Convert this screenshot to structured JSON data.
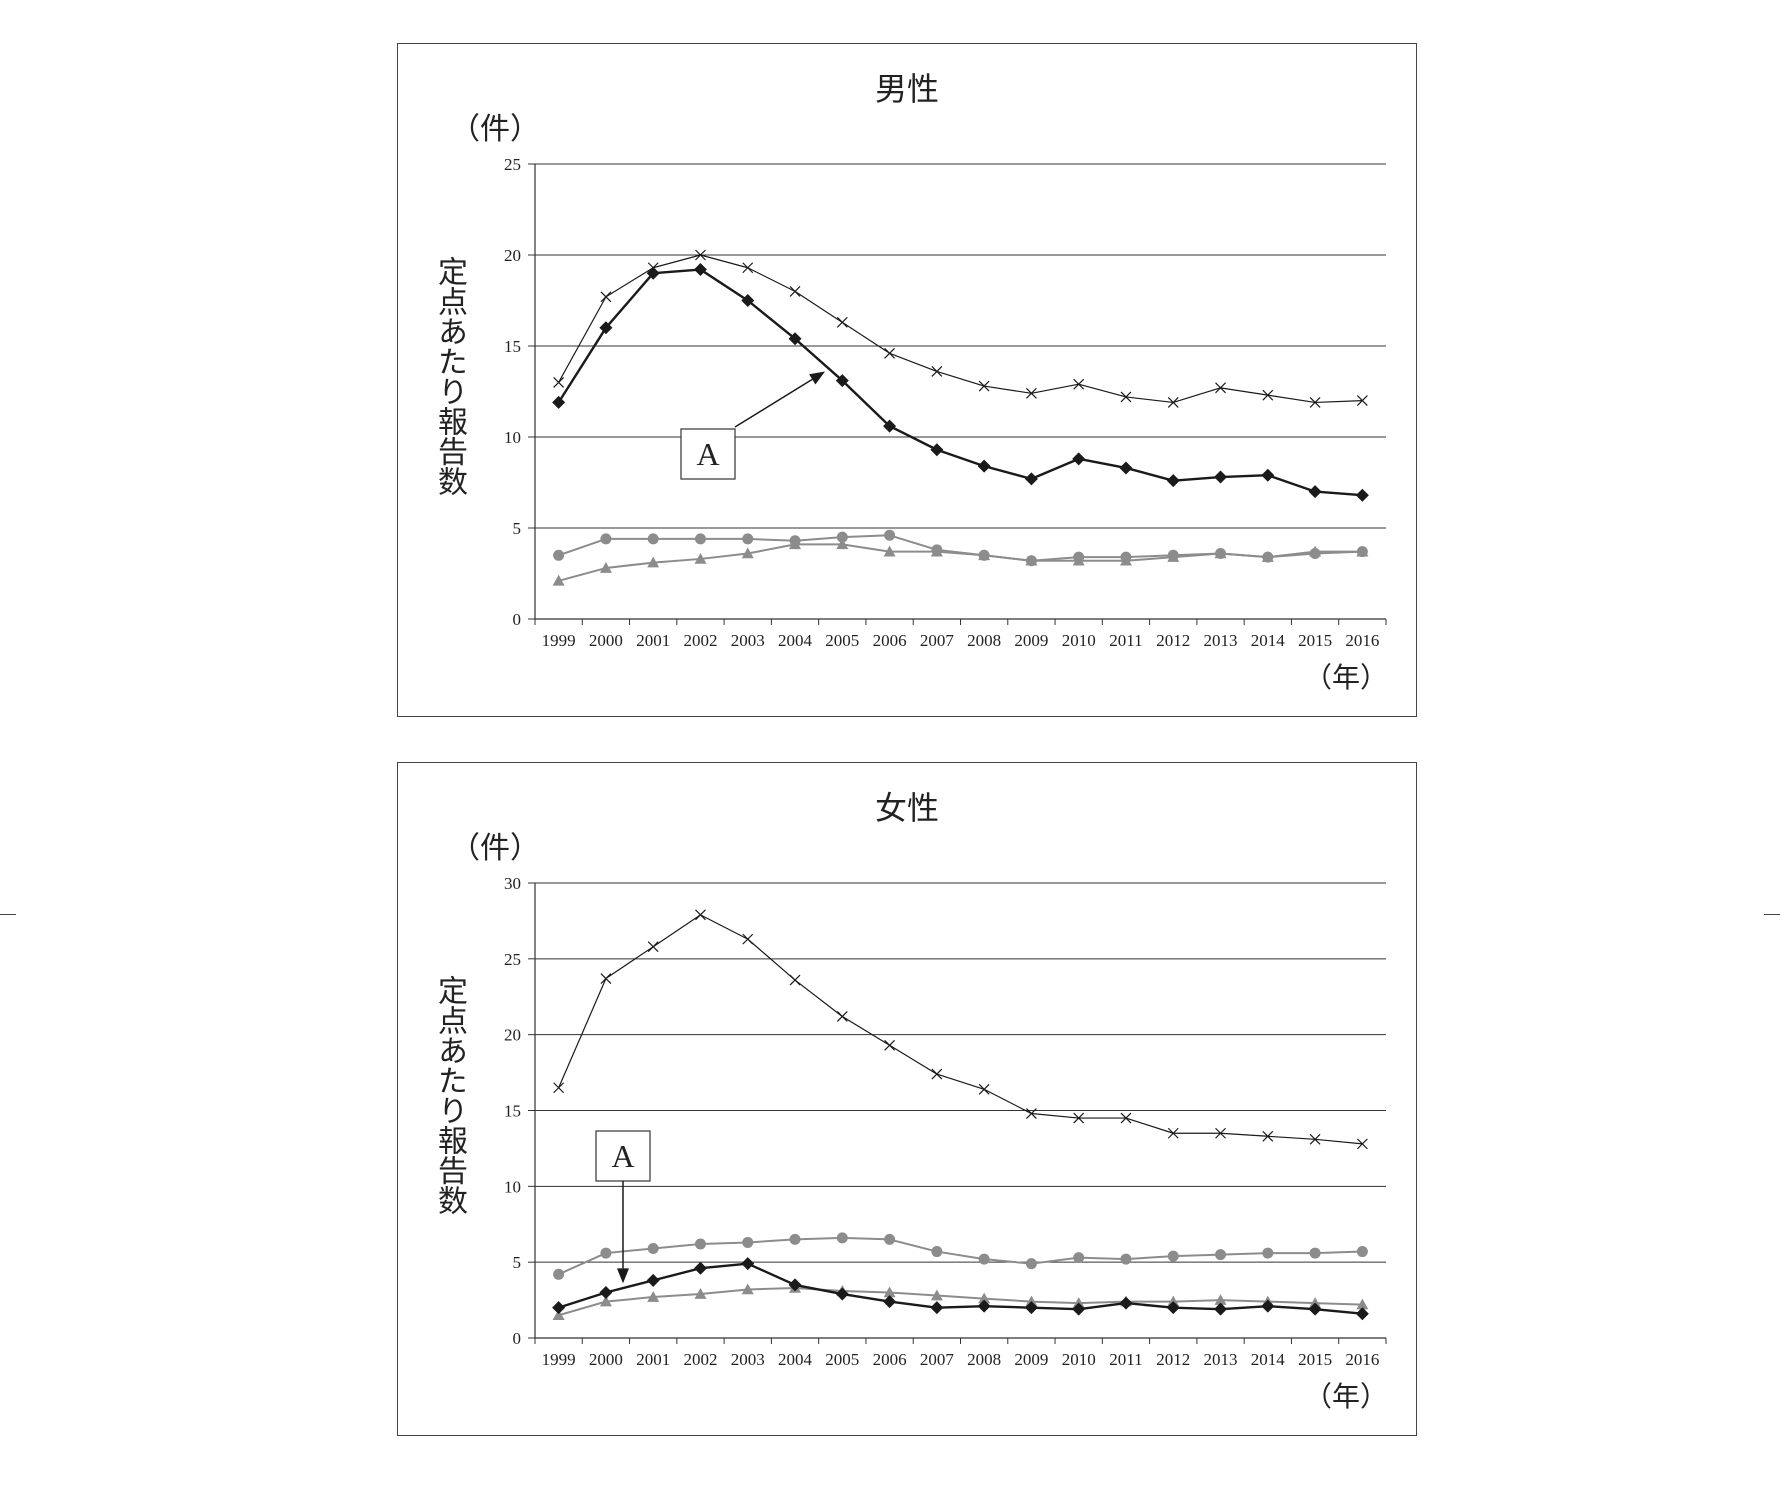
{
  "years": [
    "1999",
    "2000",
    "2001",
    "2002",
    "2003",
    "2004",
    "2005",
    "2006",
    "2007",
    "2008",
    "2009",
    "2010",
    "2011",
    "2012",
    "2013",
    "2014",
    "2015",
    "2016"
  ],
  "unit_label": "（件）",
  "year_label": "（年）",
  "ylabel": "定点あたり報告数",
  "annotation": "A",
  "colors": {
    "black": "#1a1a1a",
    "gray": "#8c8c8c",
    "frame": "#444444"
  },
  "chart_data": [
    {
      "type": "line",
      "title": "男性",
      "categories": [
        "1999",
        "2000",
        "2001",
        "2002",
        "2003",
        "2004",
        "2005",
        "2006",
        "2007",
        "2008",
        "2009",
        "2010",
        "2011",
        "2012",
        "2013",
        "2014",
        "2015",
        "2016"
      ],
      "ylim": [
        0,
        25
      ],
      "yticks": [
        0,
        5,
        10,
        15,
        20,
        25
      ],
      "grid": true,
      "series": [
        {
          "marker": "cross",
          "color": "#1a1a1a",
          "width": 1.2,
          "values": [
            13.0,
            17.7,
            19.3,
            20.0,
            19.3,
            18.0,
            16.3,
            14.6,
            13.6,
            12.8,
            12.4,
            12.9,
            12.2,
            11.9,
            12.7,
            12.3,
            11.9,
            12.0
          ]
        },
        {
          "marker": "diamond",
          "color": "#1a1a1a",
          "width": 2.4,
          "values": [
            11.9,
            16.0,
            19.0,
            19.2,
            17.5,
            15.4,
            13.1,
            10.6,
            9.3,
            8.4,
            7.7,
            8.8,
            8.3,
            7.6,
            7.8,
            7.9,
            7.0,
            6.8
          ]
        },
        {
          "marker": "circle",
          "color": "#8c8c8c",
          "width": 2.0,
          "values": [
            3.5,
            4.4,
            4.4,
            4.4,
            4.4,
            4.3,
            4.5,
            4.6,
            3.8,
            3.5,
            3.2,
            3.4,
            3.4,
            3.5,
            3.6,
            3.4,
            3.6,
            3.7
          ]
        },
        {
          "marker": "triangle",
          "color": "#8c8c8c",
          "width": 2.0,
          "values": [
            2.1,
            2.8,
            3.1,
            3.3,
            3.6,
            4.1,
            4.1,
            3.7,
            3.7,
            3.5,
            3.2,
            3.2,
            3.2,
            3.4,
            3.6,
            3.4,
            3.7,
            3.7
          ]
        }
      ],
      "annotation": {
        "label": "A",
        "points_to_year": "2004",
        "points_to_value": 13.6
      }
    },
    {
      "type": "line",
      "title": "女性",
      "categories": [
        "1999",
        "2000",
        "2001",
        "2002",
        "2003",
        "2004",
        "2005",
        "2006",
        "2007",
        "2008",
        "2009",
        "2010",
        "2011",
        "2012",
        "2013",
        "2014",
        "2015",
        "2016"
      ],
      "ylim": [
        0,
        30
      ],
      "yticks": [
        0,
        5,
        10,
        15,
        20,
        25,
        30
      ],
      "grid": true,
      "series": [
        {
          "marker": "cross",
          "color": "#1a1a1a",
          "width": 1.2,
          "values": [
            16.5,
            23.7,
            25.8,
            27.9,
            26.3,
            23.6,
            21.2,
            19.3,
            17.4,
            16.4,
            14.8,
            14.5,
            14.5,
            13.5,
            13.5,
            13.3,
            13.1,
            12.8
          ]
        },
        {
          "marker": "diamond",
          "color": "#1a1a1a",
          "width": 2.4,
          "values": [
            2.0,
            3.0,
            3.8,
            4.6,
            4.9,
            3.5,
            2.9,
            2.4,
            2.0,
            2.1,
            2.0,
            1.9,
            2.3,
            2.0,
            1.9,
            2.1,
            1.9,
            1.6
          ]
        },
        {
          "marker": "circle",
          "color": "#8c8c8c",
          "width": 2.0,
          "values": [
            4.2,
            5.6,
            5.9,
            6.2,
            6.3,
            6.5,
            6.6,
            6.5,
            5.7,
            5.2,
            4.9,
            5.3,
            5.2,
            5.4,
            5.5,
            5.6,
            5.6,
            5.7
          ]
        },
        {
          "marker": "triangle",
          "color": "#8c8c8c",
          "width": 2.0,
          "values": [
            1.5,
            2.4,
            2.7,
            2.9,
            3.2,
            3.3,
            3.1,
            3.0,
            2.8,
            2.6,
            2.4,
            2.3,
            2.4,
            2.4,
            2.5,
            2.4,
            2.3,
            2.2
          ]
        }
      ],
      "annotation": {
        "label": "A",
        "points_to_year": "2000",
        "points_to_value": 3.6
      }
    }
  ]
}
